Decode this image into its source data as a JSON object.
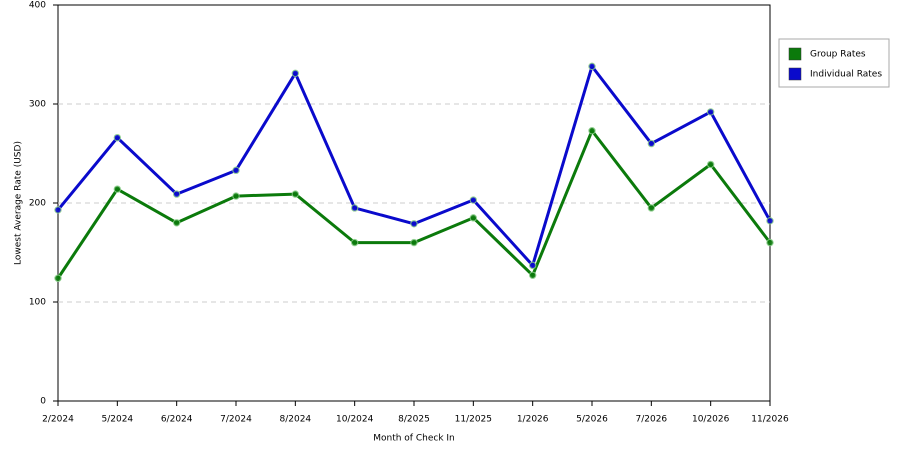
{
  "chart_data": {
    "type": "line",
    "x_label": "Month of Check In",
    "y_label": "Lowest Average Rate (USD)",
    "categories": [
      "2/2024",
      "5/2024",
      "6/2024",
      "7/2024",
      "8/2024",
      "10/2024",
      "8/2025",
      "11/2025",
      "1/2026",
      "5/2026",
      "7/2026",
      "10/2026",
      "11/2026"
    ],
    "series": [
      {
        "name": "Group Rates",
        "color": "#0b7a0b",
        "values": [
          124,
          214,
          180,
          207,
          209,
          160,
          160,
          185,
          127,
          273,
          195,
          239,
          160
        ]
      },
      {
        "name": "Individual Rates",
        "color": "#0a0acc",
        "values": [
          193,
          266,
          209,
          233,
          331,
          195,
          179,
          203,
          137,
          338,
          260,
          292,
          182
        ]
      }
    ],
    "ylim": [
      0,
      400
    ],
    "yticks": [
      0,
      100,
      200,
      300,
      400
    ],
    "grid": true,
    "legend": "right"
  }
}
